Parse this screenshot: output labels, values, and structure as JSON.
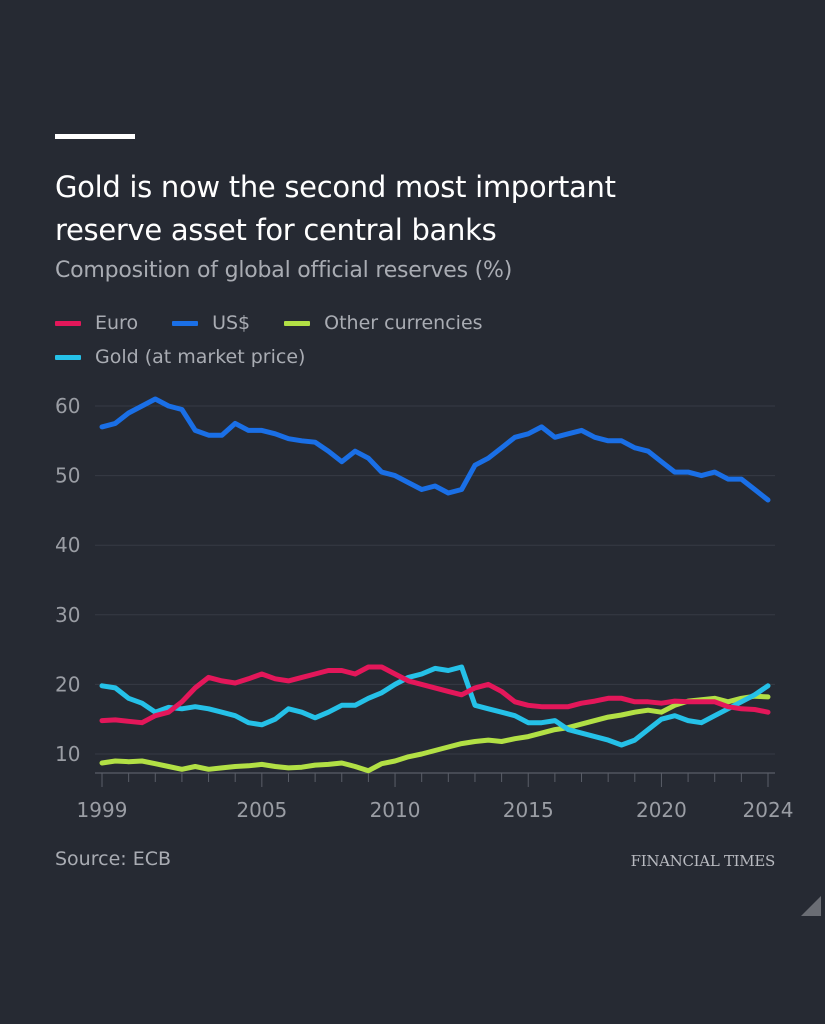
{
  "header": {
    "title_line1": "Gold is now the second most important",
    "title_line2": "reserve asset for central banks",
    "subtitle": "Composition of global official reserves (%)"
  },
  "legend": [
    {
      "name": "Euro",
      "color": "#e3175a"
    },
    {
      "name": "US$",
      "color": "#1a6fe6"
    },
    {
      "name": "Other currencies",
      "color": "#b2e045"
    },
    {
      "name": "Gold (at market price)",
      "color": "#25c1e8"
    }
  ],
  "footer": {
    "source": "Source: ECB",
    "brand": "FINANCIAL TIMES"
  },
  "chart_data": {
    "type": "line",
    "title": "Gold is now the second most important reserve asset for central banks",
    "subtitle": "Composition of global official reserves (%)",
    "xlabel": "",
    "ylabel": "%",
    "xlim": [
      1999,
      2024
    ],
    "ylim": [
      7.3,
      62
    ],
    "yticks": [
      10,
      20,
      30,
      40,
      50,
      60
    ],
    "xticks": [
      1999,
      2005,
      2010,
      2015,
      2020,
      2024
    ],
    "xtick_labels": [
      "1999",
      "2005",
      "2010",
      "2015",
      "2020",
      "2024"
    ],
    "grid": true,
    "legend_position": "top-left",
    "x": [
      1999,
      1999.5,
      2000,
      2000.5,
      2001,
      2001.5,
      2002,
      2002.5,
      2003,
      2003.5,
      2004,
      2004.5,
      2005,
      2005.5,
      2006,
      2006.5,
      2007,
      2007.5,
      2008,
      2008.5,
      2009,
      2009.5,
      2010,
      2010.5,
      2011,
      2011.5,
      2012,
      2012.5,
      2013,
      2013.5,
      2014,
      2014.5,
      2015,
      2015.5,
      2016,
      2016.5,
      2017,
      2017.5,
      2018,
      2018.5,
      2019,
      2019.5,
      2020,
      2020.5,
      2021,
      2021.5,
      2022,
      2022.5,
      2023,
      2023.5,
      2024
    ],
    "series": [
      {
        "name": "US$",
        "color": "#1a6fe6",
        "values": [
          57.0,
          57.5,
          59.0,
          60.0,
          61.0,
          60.0,
          59.5,
          56.5,
          55.8,
          55.8,
          57.5,
          56.5,
          56.5,
          56.0,
          55.3,
          55.0,
          54.8,
          53.5,
          52.0,
          53.5,
          52.5,
          50.5,
          50.0,
          49.0,
          48.0,
          48.5,
          47.5,
          48.0,
          51.5,
          52.5,
          54.0,
          55.5,
          56.0,
          57.0,
          55.5,
          56.0,
          56.5,
          55.5,
          55.0,
          55.0,
          54.0,
          53.5,
          52.0,
          50.5,
          50.5,
          50.0,
          50.5,
          49.5,
          49.5,
          48.0,
          46.5
        ]
      },
      {
        "name": "Euro",
        "color": "#e3175a",
        "values": [
          14.8,
          14.9,
          14.7,
          14.5,
          15.5,
          16.0,
          17.5,
          19.5,
          21.0,
          20.5,
          20.2,
          20.8,
          21.5,
          20.8,
          20.5,
          21.0,
          21.5,
          22.0,
          22.0,
          21.5,
          22.5,
          22.5,
          21.5,
          20.5,
          20.0,
          19.5,
          19.0,
          18.5,
          19.5,
          20.0,
          19.0,
          17.5,
          17.0,
          16.8,
          16.8,
          16.8,
          17.3,
          17.6,
          18.0,
          18.0,
          17.5,
          17.5,
          17.3,
          17.6,
          17.5,
          17.5,
          17.5,
          16.8,
          16.5,
          16.4,
          16.0
        ]
      },
      {
        "name": "Other currencies",
        "color": "#b2e045",
        "values": [
          8.7,
          9.0,
          8.9,
          9.0,
          8.6,
          8.2,
          7.8,
          8.2,
          7.8,
          8.0,
          8.2,
          8.3,
          8.5,
          8.2,
          8.0,
          8.1,
          8.4,
          8.5,
          8.7,
          8.2,
          7.6,
          8.6,
          9.0,
          9.6,
          10.0,
          10.5,
          11.0,
          11.5,
          11.8,
          12.0,
          11.8,
          12.2,
          12.5,
          13.0,
          13.5,
          13.8,
          14.3,
          14.8,
          15.3,
          15.6,
          16.0,
          16.3,
          16.0,
          17.0,
          17.6,
          17.8,
          18.0,
          17.5,
          18.0,
          18.3,
          18.2
        ]
      },
      {
        "name": "Gold (at market price)",
        "color": "#25c1e8",
        "values": [
          19.8,
          19.5,
          18.0,
          17.3,
          16.0,
          16.7,
          16.5,
          16.8,
          16.5,
          16.0,
          15.5,
          14.5,
          14.2,
          15.0,
          16.5,
          16.0,
          15.2,
          16.0,
          17.0,
          17.0,
          18.0,
          18.8,
          20.0,
          21.0,
          21.5,
          22.3,
          22.0,
          22.5,
          17.0,
          16.5,
          16.0,
          15.5,
          14.5,
          14.5,
          14.8,
          13.5,
          13.0,
          12.5,
          12.0,
          11.3,
          12.0,
          13.5,
          15.0,
          15.5,
          14.8,
          14.5,
          15.5,
          16.5,
          17.5,
          18.5,
          19.8
        ]
      }
    ]
  }
}
